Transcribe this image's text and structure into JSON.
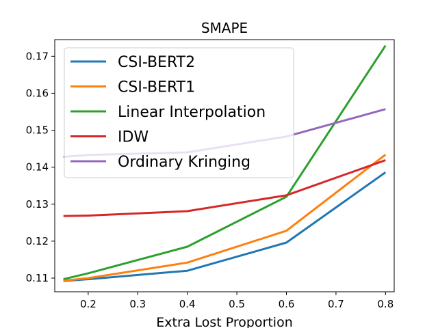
{
  "chart_data": {
    "type": "line",
    "title": "SMAPE",
    "xlabel": "Extra Lost Proportion",
    "ylabel": "",
    "xlim": [
      0.1325,
      0.8175
    ],
    "ylim": [
      0.1063,
      0.1745
    ],
    "x_ticks": [
      0.2,
      0.3,
      0.4,
      0.5,
      0.6,
      0.7,
      0.8
    ],
    "x_tick_labels": [
      "0.2",
      "0.3",
      "0.4",
      "0.5",
      "0.6",
      "0.7",
      "0.8"
    ],
    "y_ticks": [
      0.11,
      0.12,
      0.13,
      0.14,
      0.15,
      0.16,
      0.17
    ],
    "y_tick_labels": [
      "0.11",
      "0.12",
      "0.13",
      "0.14",
      "0.15",
      "0.16",
      "0.17"
    ],
    "grid": false,
    "legend_position": "upper-left",
    "x": [
      0.15,
      0.2,
      0.4,
      0.6,
      0.8
    ],
    "series": [
      {
        "name": "CSI-BERT2",
        "color": "#1f77b4",
        "values": [
          0.1092,
          0.1097,
          0.112,
          0.1196,
          0.1386
        ]
      },
      {
        "name": "CSI-BERT1",
        "color": "#ff7f0e",
        "values": [
          0.1093,
          0.11,
          0.1142,
          0.1228,
          0.1434
        ]
      },
      {
        "name": "Linear Interpolation",
        "color": "#2ca02c",
        "values": [
          0.1097,
          0.1113,
          0.1185,
          0.132,
          0.1729
        ]
      },
      {
        "name": "IDW",
        "color": "#d62728",
        "values": [
          0.1268,
          0.1269,
          0.1281,
          0.1324,
          0.1419
        ]
      },
      {
        "name": "Ordinary Kringing",
        "color": "#9467bd",
        "values": [
          0.1428,
          0.1433,
          0.144,
          0.1483,
          0.1557
        ]
      }
    ]
  }
}
